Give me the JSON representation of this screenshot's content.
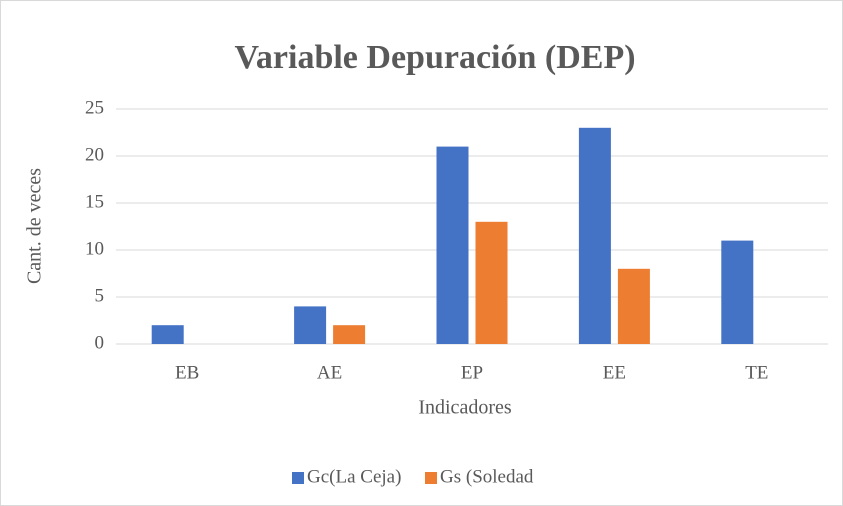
{
  "chart_data": {
    "type": "bar",
    "title": "Variable Depuración (DEP)",
    "categories": [
      "EB",
      "AE",
      "EP",
      "EE",
      "TE"
    ],
    "series": [
      {
        "name": "Gc(La Ceja)",
        "color": "#4472c4",
        "values": [
          2,
          4,
          21,
          23,
          11
        ]
      },
      {
        "name": "Gs (Soledad",
        "color": "#ed7d31",
        "values": [
          0,
          2,
          13,
          8,
          0
        ]
      }
    ],
    "xlabel": "Indicadores",
    "ylabel": "Cant. de veces",
    "ylim": [
      0,
      25
    ],
    "yticks": [
      0,
      5,
      10,
      15,
      20,
      25
    ],
    "grid": true,
    "legend": "bottom"
  }
}
